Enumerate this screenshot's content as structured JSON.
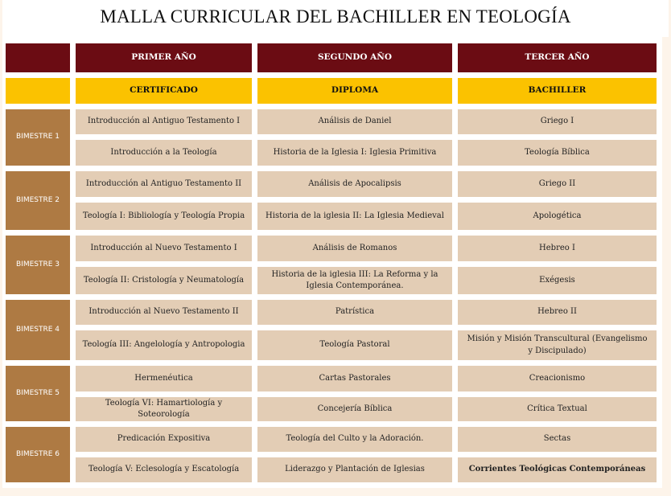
{
  "title": "MALLA CURRICULAR DEL BACHILLER EN TEOLOGÍA",
  "years": [
    "PRIMER AÑO",
    "SEGUNDO AÑO",
    "TERCER AÑO"
  ],
  "levels": [
    "CERTIFICADO",
    "DIPLOMA",
    "BACHILLER"
  ],
  "colors": {
    "year_header": "#6b0c13",
    "level_header": "#fbc200",
    "bimestre": "#ae7a43",
    "cell": "#e3cdb5"
  },
  "bimestres": [
    {
      "label": "BIMESTRE 1",
      "rows": [
        [
          "Introducción al Antiguo Testamento I",
          "Análisis de Daniel",
          "Griego I"
        ],
        [
          "Introducción a la Teología",
          "Historia de la Iglesia I: Iglesia Primitiva",
          "Teología Bíblica"
        ]
      ]
    },
    {
      "label": "BIMESTRE 2",
      "rows": [
        [
          "Introducción al Antiguo Testamento II",
          "Análisis de Apocalipsis",
          "Griego II"
        ],
        [
          "Teología I: Bibliología y Teología Propia",
          "Historia de la iglesia II: La Iglesia Medieval",
          "Apologética"
        ]
      ]
    },
    {
      "label": "BIMESTRE 3",
      "rows": [
        [
          "Introducción al Nuevo Testamento I",
          "Análisis de Romanos",
          "Hebreo I"
        ],
        [
          "Teología II: Cristología y Neumatología",
          "Historia de la iglesia III: La Reforma y la Iglesia Contemporánea.",
          "Exégesis"
        ]
      ]
    },
    {
      "label": "BIMESTRE 4",
      "rows": [
        [
          "Introducción al Nuevo Testamento II",
          "Patrística",
          "Hebreo II"
        ],
        [
          "Teología III:  Angelología y Antropologia",
          "Teología Pastoral",
          "Misión y Misión Transcultural (Evangelismo y Discipulado)"
        ]
      ]
    },
    {
      "label": "BIMESTRE 5",
      "rows": [
        [
          "Hermenéutica",
          "Cartas Pastorales",
          "Creacionismo"
        ],
        [
          "Teología VI:  Hamartiología y Soteorología",
          "Concejería Bíblica",
          "Crítica Textual"
        ]
      ]
    },
    {
      "label": "BIMESTRE 6",
      "rows": [
        [
          "Predicación Expositiva",
          "Teología del Culto y la Adoración.",
          "Sectas"
        ],
        [
          "Teología V: Eclesología y Escatología",
          "Liderazgo y Plantación de Iglesias",
          "Corrientes Teológicas Contemporáneas"
        ]
      ]
    }
  ]
}
